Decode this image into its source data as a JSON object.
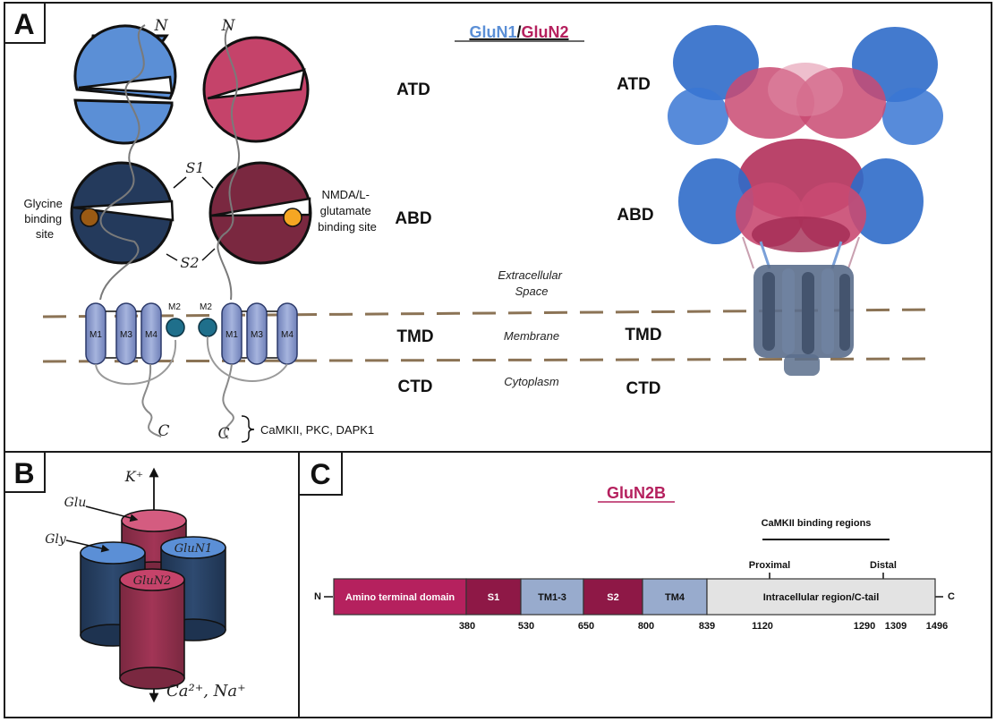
{
  "panels": {
    "a": {
      "letter": "A"
    },
    "b": {
      "letter": "B"
    },
    "c": {
      "letter": "C"
    }
  },
  "panel_a": {
    "title_glun1": "GluN1",
    "title_sep": "/",
    "title_glun2": "GluN2",
    "atd": "ATD",
    "abd": "ABD",
    "tmd": "TMD",
    "ctd": "CTD",
    "n_terminus": "N",
    "c_terminus": "C",
    "s1": "S1",
    "s2": "S2",
    "m1": "M1",
    "m2": "M2",
    "m3": "M3",
    "m4": "M4",
    "glycine_site": [
      "Glycine",
      "binding",
      "site"
    ],
    "glutamate_site": [
      "NMDA/L-",
      "glutamate",
      "binding site"
    ],
    "extracellular": [
      "Extracellular",
      "Space"
    ],
    "membrane": "Membrane",
    "cytoplasm": "Cytoplasm",
    "kinases": "CaMKII, PKC, DAPK1"
  },
  "panel_b": {
    "k_ion": "K⁺",
    "ca_na_ions": "Ca²⁺, Na⁺",
    "glu": "Glu",
    "gly": "Gly",
    "glun1": "GluN1",
    "glun2": "GluN2"
  },
  "panel_c": {
    "title": "GluN2B",
    "camkii_regions": "CaMKII binding regions",
    "proximal": "Proximal",
    "distal": "Distal",
    "n_end": "N",
    "c_end": "C",
    "segments": [
      {
        "label": "Amino terminal domain",
        "start": 1,
        "end": 380,
        "color": "#B5215E",
        "text_color": "#ffffff"
      },
      {
        "label": "S1",
        "start": 380,
        "end": 530,
        "color": "#8E1846",
        "text_color": "#ffffff"
      },
      {
        "label": "TM1-3",
        "start": 530,
        "end": 650,
        "color": "#98ABCD",
        "text_color": "#111111"
      },
      {
        "label": "S2",
        "start": 650,
        "end": 800,
        "color": "#8E1846",
        "text_color": "#ffffff"
      },
      {
        "label": "TM4",
        "start": 800,
        "end": 839,
        "color": "#98ABCD",
        "text_color": "#111111"
      },
      {
        "label": "Intracellular region/C-tail",
        "start": 839,
        "end": 1496,
        "color": "#E3E3E3",
        "text_color": "#111111"
      }
    ],
    "positions": [
      "380",
      "530",
      "650",
      "800",
      "839",
      "1120",
      "1290",
      "1309",
      "1496"
    ]
  },
  "colors": {
    "glun1": "#5B8FD6",
    "glun1_dark": "#243A5C",
    "glun2": "#C5436A",
    "glun2_dark": "#7A2840",
    "membrane_line": "#8B7355",
    "glycine_dot": "#9A5A14",
    "glutamate_dot": "#F5A623",
    "m2_ball": "#1F6F8B",
    "helix": "#8797C8"
  }
}
